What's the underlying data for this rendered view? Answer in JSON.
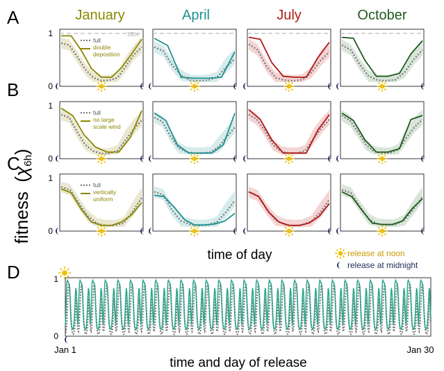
{
  "figure": {
    "y_axis_label": "fitness",
    "y_axis_symbol": "χ",
    "y_axis_subscript": "6h",
    "panel_letters": [
      "A",
      "B",
      "C",
      "D"
    ],
    "shared_x_label": "time of day",
    "panel_d_x_label": "time and day of release",
    "legend_noon": "release at noon",
    "legend_midnight": "release at midnight",
    "ref_line_label": "100x",
    "months": [
      {
        "name": "January",
        "color": "#8a8600",
        "band": "#e6e4c8"
      },
      {
        "name": "April",
        "color": "#1f9090",
        "band": "#cfe7e7"
      },
      {
        "name": "July",
        "color": "#b01818",
        "band": "#f3cccc"
      },
      {
        "name": "October",
        "color": "#1d5a1d",
        "band": "#d4e0d4"
      }
    ],
    "full_color": "#777777",
    "sun_color": "#f0c000",
    "moon_color": "#1b2a5a",
    "panel_d_color": "#2aa58a"
  },
  "chart_data": [
    {
      "panel": "A",
      "type": "line",
      "title": "",
      "y_ticks": [
        "0",
        "1"
      ],
      "ylim": [
        0,
        1
      ],
      "legend": [
        "full",
        "double deposition"
      ],
      "series": [
        {
          "name": "full",
          "month": "January",
          "values": [
            0.8,
            0.76,
            0.52,
            0.26,
            0.09,
            0.03,
            0.04,
            0.09,
            0.32,
            0.56,
            0.72
          ]
        },
        {
          "name": "double deposition",
          "month": "January",
          "values": [
            0.95,
            0.95,
            0.65,
            0.28,
            0.1,
            0.1,
            0.3,
            0.58,
            0.88
          ]
        },
        {
          "name": "full",
          "month": "April",
          "values": [
            0.72,
            0.64,
            0.35,
            0.14,
            0.04,
            0.03,
            0.04,
            0.1,
            0.3,
            0.48
          ]
        },
        {
          "name": "double deposition",
          "month": "April",
          "values": [
            0.9,
            0.75,
            0.1,
            0.08,
            0.08,
            0.1,
            0.62
          ]
        },
        {
          "name": "full",
          "month": "July",
          "values": [
            0.78,
            0.66,
            0.32,
            0.09,
            0.04,
            0.03,
            0.05,
            0.2,
            0.44,
            0.62
          ]
        },
        {
          "name": "double deposition",
          "month": "July",
          "values": [
            0.92,
            0.88,
            0.4,
            0.12,
            0.1,
            0.1,
            0.5,
            0.82
          ]
        },
        {
          "name": "full",
          "month": "October",
          "values": [
            0.76,
            0.66,
            0.36,
            0.12,
            0.04,
            0.03,
            0.05,
            0.2,
            0.46,
            0.66
          ]
        },
        {
          "name": "double deposition",
          "month": "October",
          "values": [
            0.92,
            0.9,
            0.45,
            0.12,
            0.12,
            0.18,
            0.58,
            0.85
          ]
        }
      ]
    },
    {
      "panel": "B",
      "type": "line",
      "title": "",
      "y_ticks": [
        "0",
        "1"
      ],
      "ylim": [
        0,
        1
      ],
      "legend": [
        "full",
        "no large scale wind"
      ],
      "series": [
        {
          "name": "full",
          "month": "January",
          "values": [
            0.82,
            0.76,
            0.46,
            0.2,
            0.07,
            0.02,
            0.02,
            0.08,
            0.3,
            0.52,
            0.7
          ]
        },
        {
          "name": "no large scale wind",
          "month": "January",
          "values": [
            0.95,
            0.8,
            0.4,
            0.15,
            0.05,
            0.05,
            0.35,
            0.9
          ]
        },
        {
          "name": "full",
          "month": "April",
          "values": [
            0.76,
            0.68,
            0.38,
            0.14,
            0.05,
            0.03,
            0.03,
            0.05,
            0.16,
            0.36,
            0.56
          ]
        },
        {
          "name": "no large scale wind",
          "month": "April",
          "values": [
            0.85,
            0.7,
            0.2,
            0.03,
            0.03,
            0.03,
            0.2,
            0.85
          ]
        },
        {
          "name": "full",
          "month": "July",
          "values": [
            0.82,
            0.72,
            0.48,
            0.2,
            0.06,
            0.03,
            0.03,
            0.08,
            0.32,
            0.54,
            0.72
          ]
        },
        {
          "name": "no large scale wind",
          "month": "July",
          "values": [
            0.92,
            0.72,
            0.3,
            0.03,
            0.03,
            0.03,
            0.5,
            0.82
          ]
        },
        {
          "name": "full",
          "month": "October",
          "values": [
            0.8,
            0.7,
            0.46,
            0.2,
            0.06,
            0.03,
            0.03,
            0.1,
            0.34,
            0.56,
            0.72
          ]
        },
        {
          "name": "no large scale wind",
          "month": "October",
          "values": [
            0.85,
            0.7,
            0.3,
            0.05,
            0.05,
            0.12,
            0.72,
            0.8
          ]
        }
      ]
    },
    {
      "panel": "C",
      "type": "line",
      "title": "",
      "y_ticks": [
        "0",
        "1"
      ],
      "ylim": [
        0,
        1
      ],
      "legend": [
        "full",
        "vertically uniform"
      ],
      "series": [
        {
          "name": "full",
          "month": "January",
          "values": [
            0.82,
            0.76,
            0.48,
            0.22,
            0.07,
            0.03,
            0.03,
            0.08,
            0.32,
            0.6
          ]
        },
        {
          "name": "vertically uniform",
          "month": "January",
          "values": [
            0.78,
            0.7,
            0.36,
            0.1,
            0.03,
            0.03,
            0.1,
            0.25,
            0.5
          ]
        },
        {
          "name": "full",
          "month": "April",
          "values": [
            0.72,
            0.66,
            0.34,
            0.12,
            0.05,
            0.03,
            0.04,
            0.1,
            0.3,
            0.54
          ]
        },
        {
          "name": "vertically uniform",
          "month": "April",
          "values": [
            0.65,
            0.62,
            0.4,
            0.15,
            0.04,
            0.04,
            0.06,
            0.12,
            0.28
          ]
        },
        {
          "name": "full",
          "month": "July",
          "values": [
            0.72,
            0.64,
            0.36,
            0.14,
            0.05,
            0.03,
            0.04,
            0.12,
            0.3,
            0.56
          ]
        },
        {
          "name": "vertically uniform",
          "month": "July",
          "values": [
            0.72,
            0.62,
            0.3,
            0.1,
            0.03,
            0.03,
            0.08,
            0.22,
            0.48
          ]
        },
        {
          "name": "full",
          "month": "October",
          "values": [
            0.76,
            0.7,
            0.42,
            0.16,
            0.06,
            0.04,
            0.05,
            0.14,
            0.36,
            0.62
          ]
        },
        {
          "name": "vertically uniform",
          "month": "October",
          "values": [
            0.72,
            0.62,
            0.34,
            0.08,
            0.05,
            0.05,
            0.12,
            0.38,
            0.58
          ]
        }
      ]
    },
    {
      "panel": "D",
      "type": "line",
      "title": "",
      "xlabel": "time and day of release",
      "x_tick_labels": [
        "Jan 1",
        "Jan 30"
      ],
      "y_ticks": [
        "0",
        "1"
      ],
      "ylim": [
        0,
        1
      ],
      "period_samples": 24,
      "series": [
        {
          "name": "full",
          "values_one_period": [
            0.08,
            0.06,
            0.12,
            0.28,
            0.52,
            0.72,
            0.86,
            0.92,
            0.88,
            0.72,
            0.5,
            0.3,
            0.15,
            0.06,
            0.02,
            0.01,
            0.02,
            0.06,
            0.14,
            0.28,
            0.48,
            0.66,
            0.5,
            0.22
          ]
        },
        {
          "name": "",
          "values_one_period": [
            0.18,
            0.4,
            0.72,
            0.94,
            0.98,
            0.96,
            0.94,
            0.92,
            0.86,
            0.66,
            0.4,
            0.22,
            0.15,
            0.12,
            0.1,
            0.1,
            0.16,
            0.28,
            0.48,
            0.7,
            0.84,
            0.78,
            0.55,
            0.3
          ]
        }
      ]
    }
  ]
}
